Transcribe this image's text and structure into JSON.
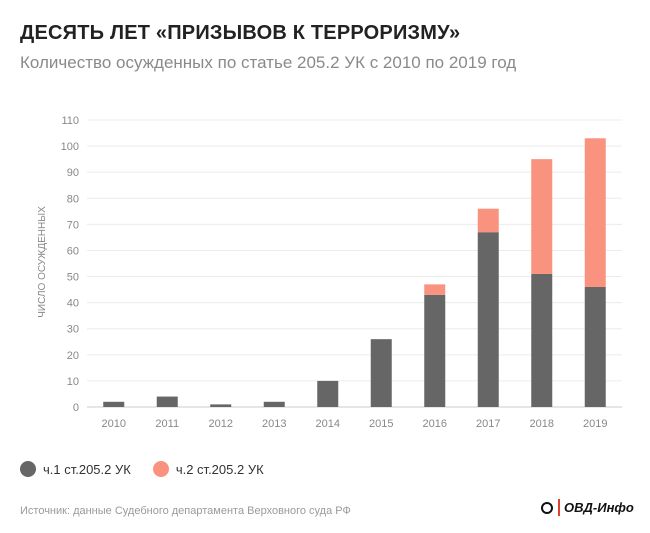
{
  "header": {
    "title": "ДЕСЯТЬ ЛЕТ «ПРИЗЫВОВ К ТЕРРОРИЗМУ»",
    "subtitle": "Количество осужденных по статье 205.2 УК с 2010 по 2019 год"
  },
  "legend": [
    {
      "label": "ч.1 ст.205.2 УК",
      "color": "#666666"
    },
    {
      "label": "ч.2 ст.205.2 УК",
      "color": "#f99380"
    }
  ],
  "footer": {
    "source": "Источник: данные Судебного департамента Верховного суда РФ",
    "logo_text": "ОВД-Инфо"
  },
  "chart_data": {
    "type": "bar",
    "stacked": true,
    "title": "ДЕСЯТЬ ЛЕТ «ПРИЗЫВОВ К ТЕРРОРИЗМУ»",
    "subtitle": "Количество осужденных по статье 205.2 УК с 2010 по 2019 год",
    "xlabel": "",
    "ylabel": "ЧИСЛО ОСУЖДЕННЫХ",
    "ylim": [
      0,
      110
    ],
    "yticks": [
      0,
      10,
      20,
      30,
      40,
      50,
      60,
      70,
      80,
      90,
      100,
      110
    ],
    "grid": true,
    "legend_position": "bottom-left",
    "categories": [
      "2010",
      "2011",
      "2012",
      "2013",
      "2014",
      "2015",
      "2016",
      "2017",
      "2018",
      "2019"
    ],
    "series": [
      {
        "name": "ч.1 ст.205.2 УК",
        "color": "#666666",
        "values": [
          2,
          4,
          1,
          2,
          10,
          26,
          43,
          67,
          51,
          46
        ]
      },
      {
        "name": "ч.2 ст.205.2 УК",
        "color": "#f99380",
        "values": [
          0,
          0,
          0,
          0,
          0,
          0,
          4,
          9,
          44,
          57
        ]
      }
    ]
  }
}
